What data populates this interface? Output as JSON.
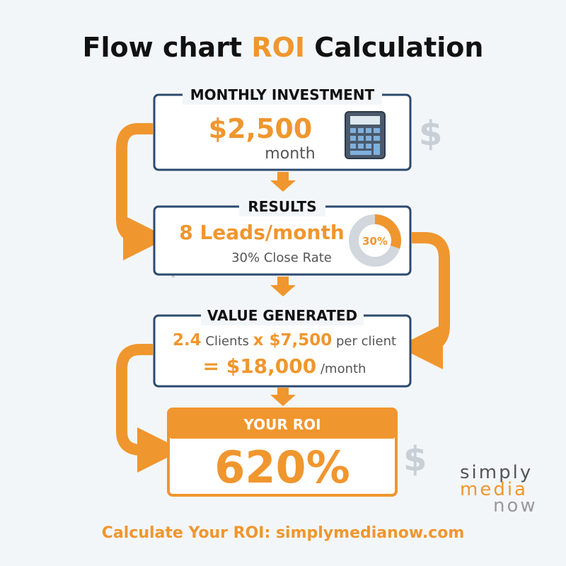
{
  "title": {
    "lead": "Flow chart",
    "highlight": "ROI",
    "tail": "Calculation"
  },
  "decor_symbol": "$",
  "investment": {
    "label": "MONTHLY INVESTMENT",
    "amount": "$2,500",
    "unit": "month"
  },
  "results": {
    "label": "RESULTS",
    "leads": "8 Leads/month",
    "close_rate": "30% Close Rate",
    "donut_label": "30%"
  },
  "value": {
    "label": "VALUE GENERATED",
    "clients": "2.4",
    "clients_text": "Clients",
    "price": "x $7,500",
    "price_text": "per client",
    "total": "= $18,000",
    "total_unit": "/month"
  },
  "roi": {
    "label": "YOUR ROI",
    "value": "620%"
  },
  "footer": "Calculate Your ROI: simplymedianow.com",
  "logo": {
    "line1": "simply",
    "line2": "media",
    "line3": "now"
  }
}
